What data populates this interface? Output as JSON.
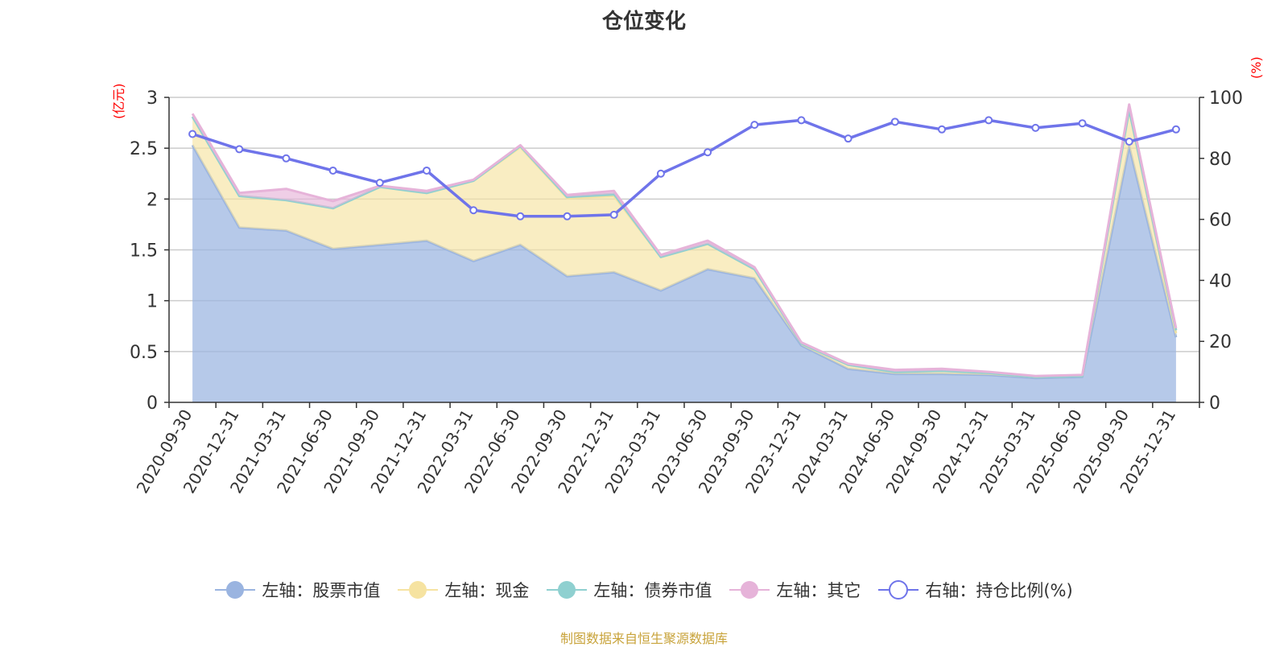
{
  "title": "仓位变化",
  "left_axis_unit": "(亿元)",
  "right_axis_unit": "(%)",
  "source": "制图数据来自恒生聚源数据库",
  "colors": {
    "stock": "#9ab4e0",
    "cash": "#f6e3a1",
    "bond": "#8fd0d0",
    "other": "#e6b3d9",
    "ratio": "#6f74ea"
  },
  "chart_data": {
    "type": "area",
    "categories": [
      "2020-09-30",
      "2020-12-31",
      "2021-03-31",
      "2021-06-30",
      "2021-09-30",
      "2021-12-31",
      "2022-03-31",
      "2022-06-30",
      "2022-09-30",
      "2022-12-31",
      "2023-03-31",
      "2023-06-30",
      "2023-09-30",
      "2023-12-31",
      "2024-03-31",
      "2024-06-30",
      "2024-09-30",
      "2024-12-31",
      "2025-03-31",
      "2025-06-30",
      "2025-09-30",
      "2025-12-31"
    ],
    "left_axis": {
      "min": 0,
      "max": 3,
      "ticks": [
        "0",
        "0.5",
        "1",
        "1.5",
        "2",
        "2.5",
        "3"
      ]
    },
    "right_axis": {
      "min": 0,
      "max": 100,
      "ticks": [
        "0",
        "20",
        "40",
        "60",
        "80",
        "100"
      ]
    },
    "series": [
      {
        "name": "左轴：股票市值",
        "axis": "left",
        "stacked": true,
        "values": [
          2.53,
          1.72,
          1.69,
          1.51,
          1.55,
          1.59,
          1.39,
          1.55,
          1.24,
          1.28,
          1.1,
          1.31,
          1.22,
          0.56,
          0.33,
          0.28,
          0.28,
          0.27,
          0.24,
          0.25,
          2.52,
          0.64
        ]
      },
      {
        "name": "左轴：现金",
        "axis": "left",
        "stacked": true,
        "values": [
          0.28,
          0.31,
          0.3,
          0.4,
          0.57,
          0.47,
          0.79,
          0.96,
          0.77,
          0.75,
          0.33,
          0.25,
          0.09,
          0.02,
          0.04,
          0.02,
          0.03,
          0.02,
          0.01,
          0.01,
          0.36,
          0.04
        ]
      },
      {
        "name": "左轴：债券市值",
        "axis": "left",
        "stacked": true,
        "values": [
          0,
          0,
          0,
          0,
          0,
          0,
          0,
          0.01,
          0.01,
          0.02,
          0,
          0,
          0,
          0,
          0,
          0,
          0,
          0,
          0,
          0,
          0,
          0.03
        ]
      },
      {
        "name": "左轴：其它",
        "axis": "left",
        "stacked": true,
        "values": [
          0.03,
          0.03,
          0.11,
          0.07,
          0.01,
          0.02,
          0.01,
          0.01,
          0.02,
          0.03,
          0.02,
          0.03,
          0.02,
          0.01,
          0.01,
          0.02,
          0.02,
          0.01,
          0.01,
          0.01,
          0.05,
          0.02
        ]
      },
      {
        "name": "右轴：持仓比例(%)",
        "axis": "right",
        "type": "line",
        "values": [
          88,
          83,
          80,
          76,
          72,
          76,
          63,
          61,
          61,
          61.5,
          75,
          82,
          91,
          92.5,
          86.5,
          92,
          89.5,
          92.5,
          90,
          91.5,
          85.5,
          89.5
        ]
      }
    ],
    "legend_position": "bottom"
  }
}
